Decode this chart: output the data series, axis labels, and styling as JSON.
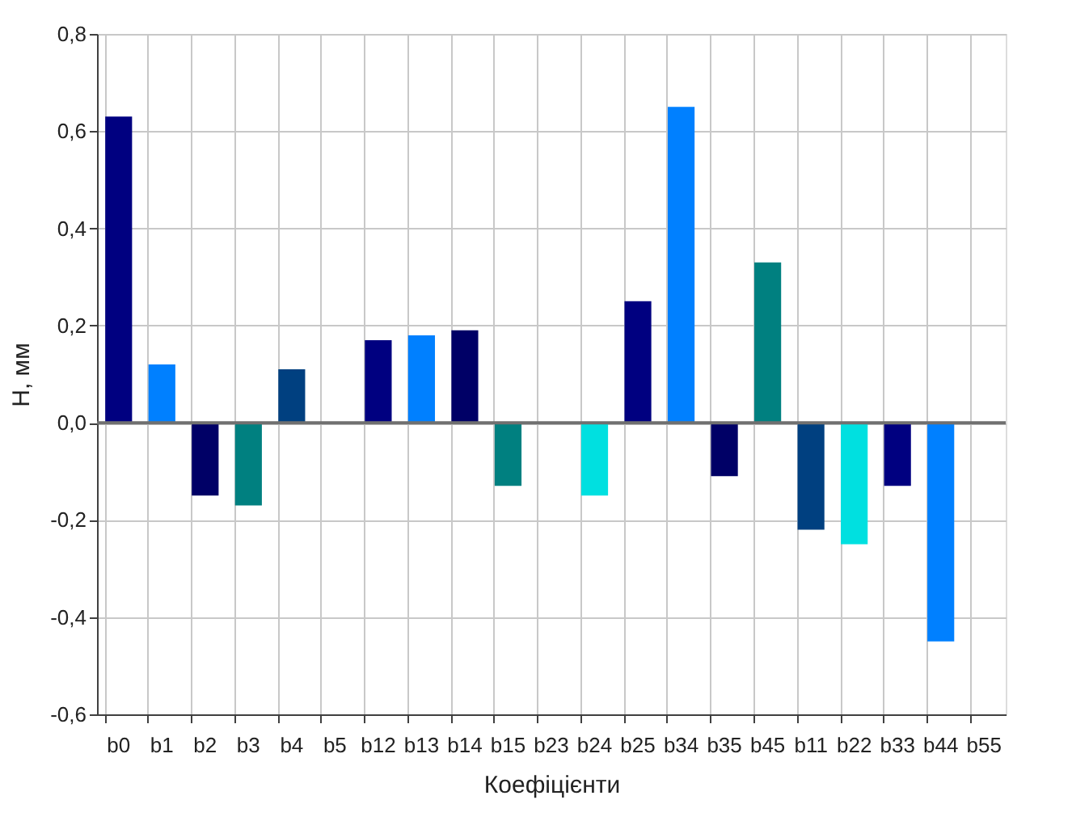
{
  "chart_data": {
    "type": "bar",
    "xlabel": "Коефіцієнти",
    "ylabel": "H, мм",
    "categories": [
      "b0",
      "b1",
      "b2",
      "b3",
      "b4",
      "b5",
      "b12",
      "b13",
      "b14",
      "b15",
      "b23",
      "b24",
      "b25",
      "b34",
      "b35",
      "b45",
      "b11",
      "b22",
      "b33",
      "b44",
      "b55"
    ],
    "values": [
      0.63,
      0.12,
      -0.15,
      -0.17,
      0.11,
      0,
      0.17,
      0.18,
      0.19,
      -0.13,
      0,
      -0.15,
      0.25,
      0.65,
      -0.11,
      0.33,
      -0.22,
      -0.25,
      -0.13,
      -0.45,
      0
    ],
    "colors": [
      "#000080",
      "#0080ff",
      "#000066",
      "#008080",
      "#004080",
      "#00e0e0",
      "#000080",
      "#0080ff",
      "#000066",
      "#008080",
      "#004080",
      "#00e0e0",
      "#000080",
      "#0080ff",
      "#000066",
      "#008080",
      "#004080",
      "#00e0e0",
      "#000080",
      "#0080ff",
      "#000066"
    ],
    "ylim": [
      -0.6,
      0.8
    ],
    "yticks": [
      {
        "value": -0.6,
        "label": "-0,6"
      },
      {
        "value": -0.4,
        "label": "-0,4"
      },
      {
        "value": -0.2,
        "label": "-0,2"
      },
      {
        "value": 0,
        "label": "0,0"
      },
      {
        "value": 0.2,
        "label": "0,2"
      },
      {
        "value": 0.4,
        "label": "0,4"
      },
      {
        "value": 0.6,
        "label": "0,6"
      },
      {
        "value": 0.8,
        "label": "0,8"
      }
    ],
    "ref_lines": [
      {
        "axis": "y",
        "value": 0,
        "color": "#707070"
      }
    ],
    "grid": true,
    "legend": false
  }
}
